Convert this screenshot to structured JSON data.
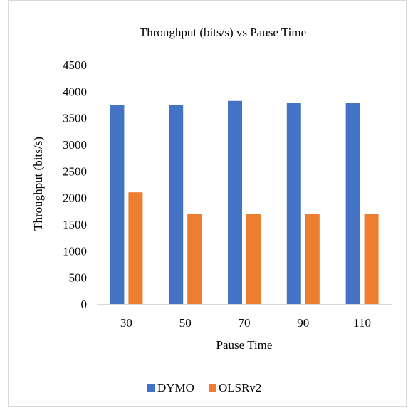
{
  "chart_data": {
    "type": "bar",
    "title": "Throughput (bits/s) vs Pause Time",
    "xlabel": "Pause Time",
    "ylabel": "Throughput (bits/s)",
    "categories": [
      "30",
      "50",
      "70",
      "90",
      "110"
    ],
    "series": [
      {
        "name": "DYMO",
        "color": "#4472c4",
        "values": [
          3740,
          3740,
          3820,
          3780,
          3780
        ]
      },
      {
        "name": "OLSRv2",
        "color": "#ed7d31",
        "values": [
          2100,
          1690,
          1690,
          1690,
          1690
        ]
      }
    ],
    "ylim": [
      0,
      4500
    ],
    "yticks": [
      0,
      500,
      1000,
      1500,
      2000,
      2500,
      3000,
      3500,
      4000,
      4500
    ],
    "grid": false,
    "legend": "bottom"
  }
}
